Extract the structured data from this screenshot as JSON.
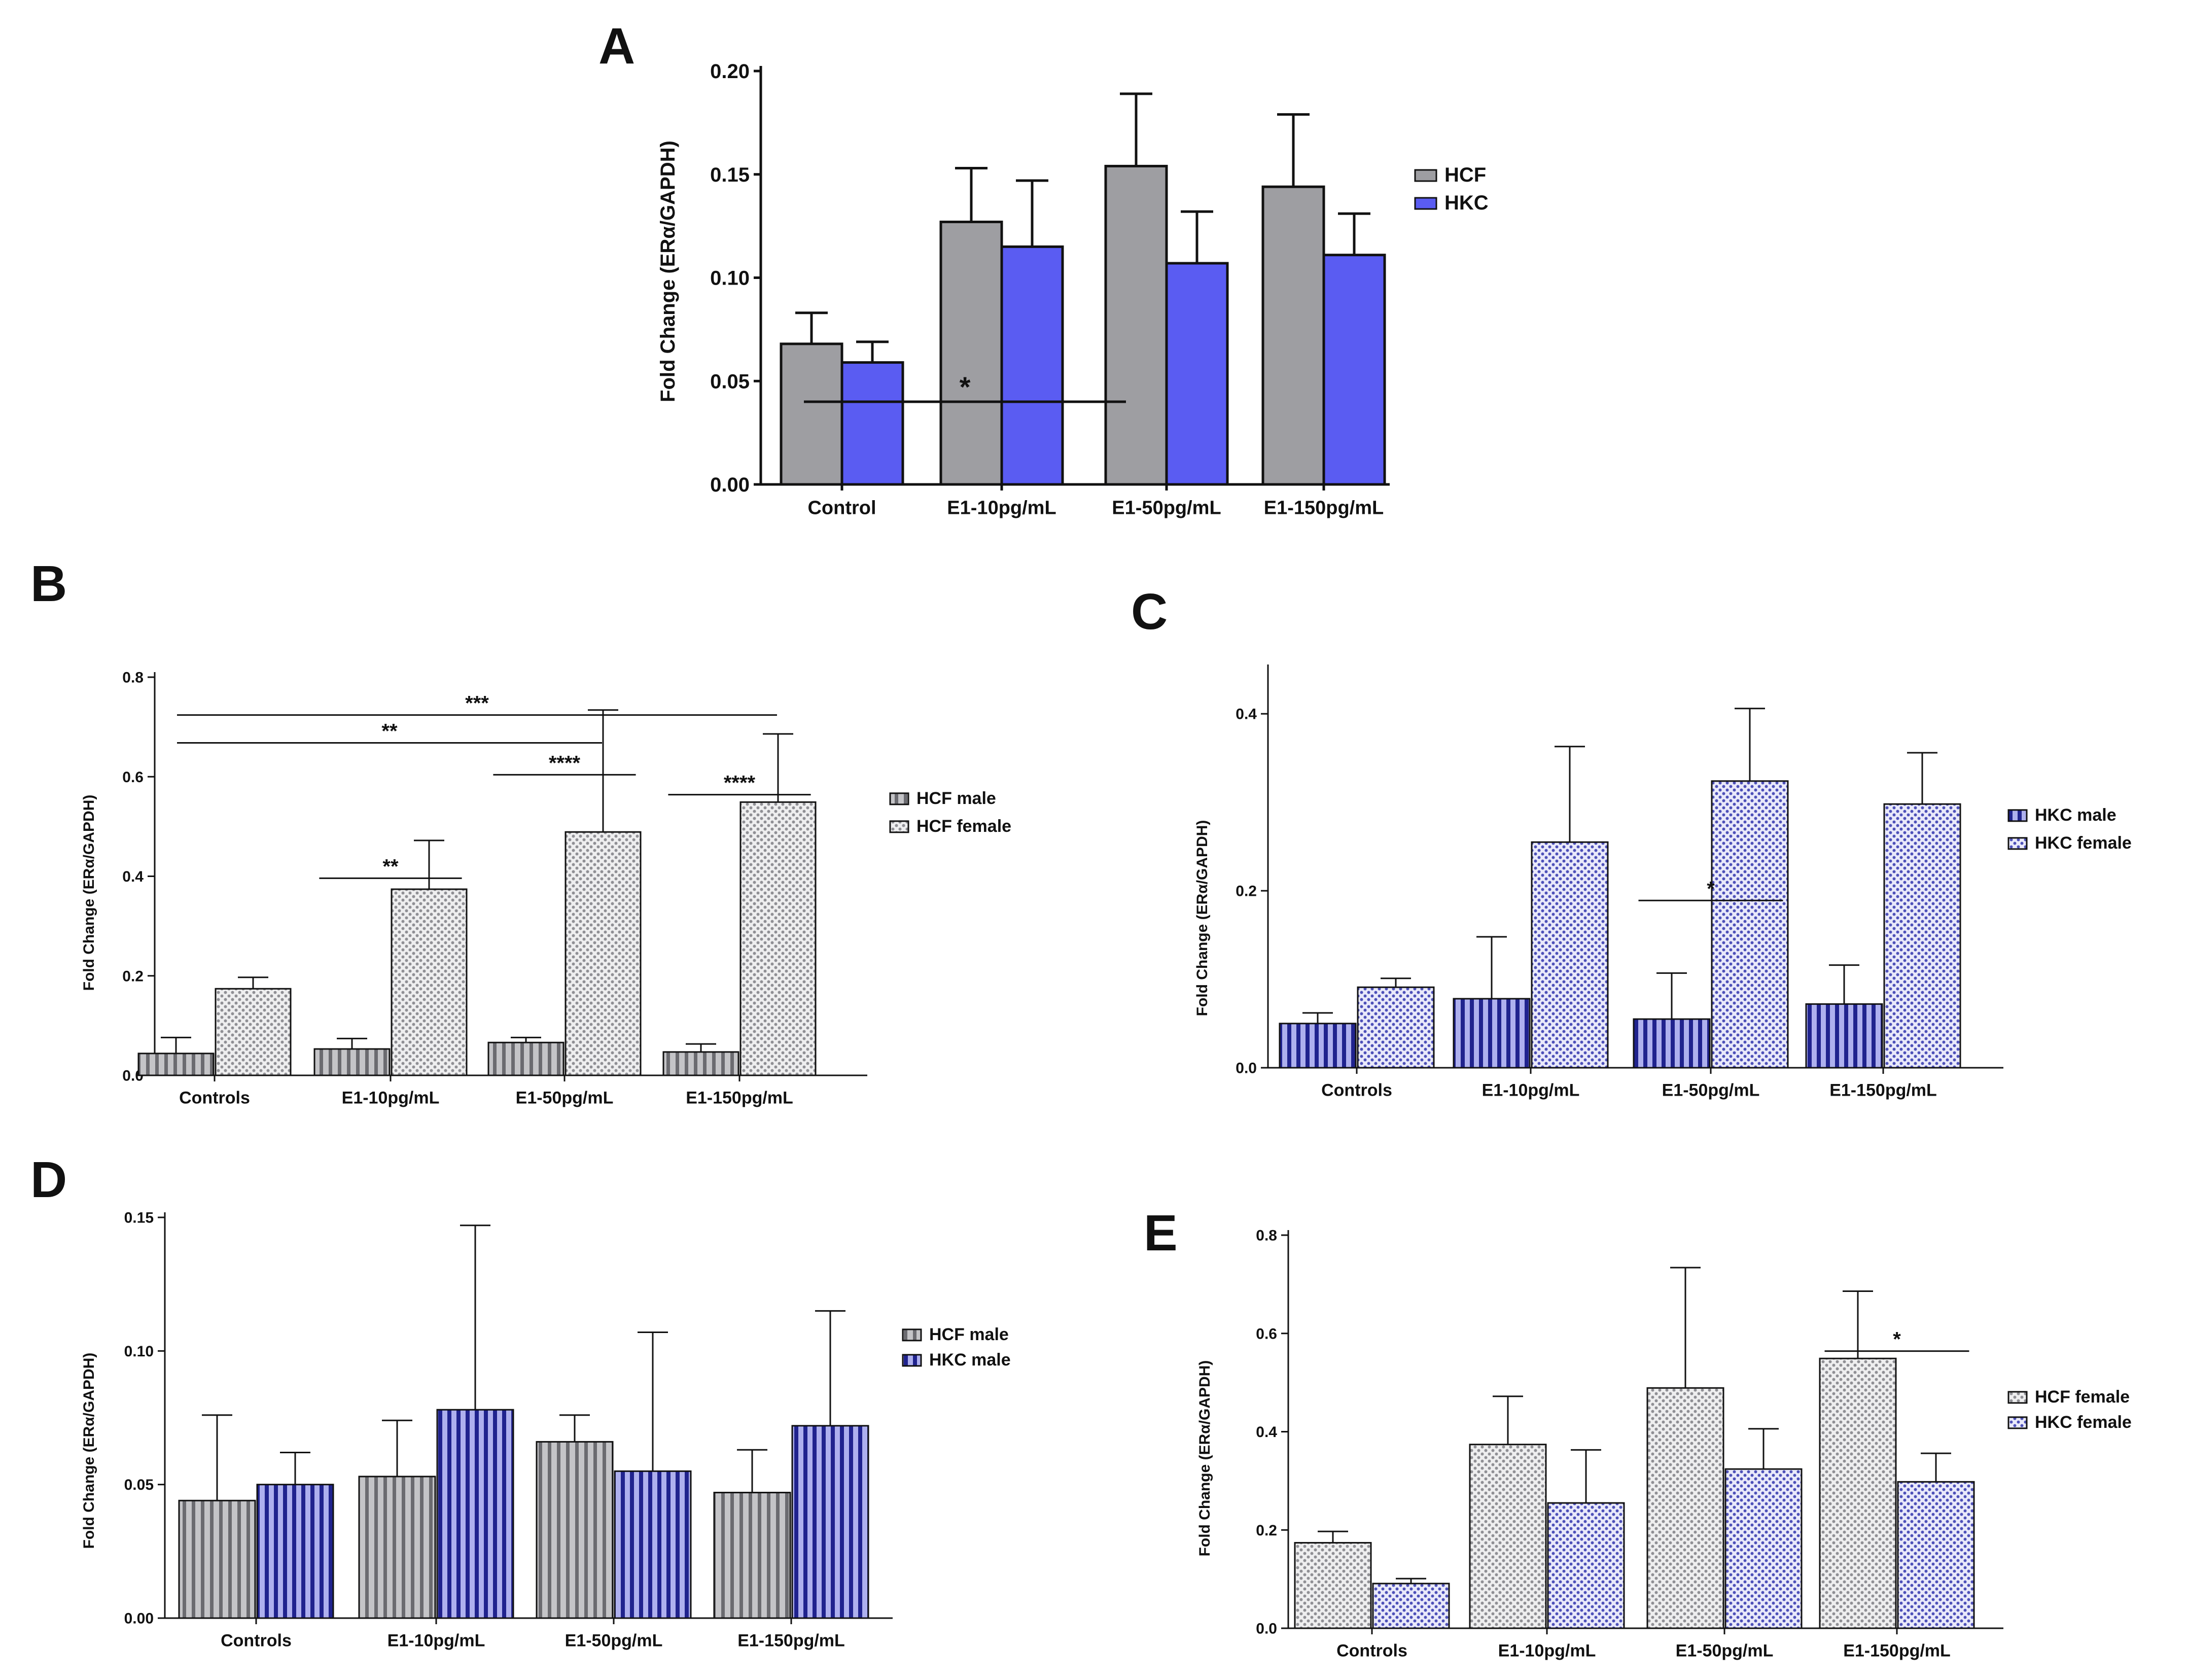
{
  "chart_data": [
    {
      "panel": "A",
      "type": "bar",
      "ylabel": "Fold Change (ERα/GAPDH)",
      "ylim": [
        0,
        0.2
      ],
      "yticks": [
        "0.00",
        "0.05",
        "0.10",
        "0.15",
        "0.20"
      ],
      "categories": [
        "Control",
        "E1-10pg/mL",
        "E1-50pg/mL",
        "E1-150pg/mL"
      ],
      "series": [
        {
          "name": "HCF",
          "color": "#9e9ea2",
          "pattern": "solid",
          "values": [
            0.068,
            0.127,
            0.154,
            0.144
          ],
          "errors": [
            0.015,
            0.026,
            0.035,
            0.035
          ]
        },
        {
          "name": "HKC",
          "color": "#5a5cf2",
          "pattern": "solid",
          "values": [
            0.059,
            0.115,
            0.107,
            0.111
          ],
          "errors": [
            0.01,
            0.032,
            0.025,
            0.02
          ]
        }
      ],
      "legend": "right",
      "significance": [
        {
          "label": "*",
          "from_category": 0,
          "to_category": 2,
          "level": 0.2
        }
      ]
    },
    {
      "panel": "B",
      "type": "bar",
      "ylabel": "Fold Change (ERα/GAPDH)",
      "ylim": [
        0,
        0.8
      ],
      "yticks": [
        "0.0",
        "0.2",
        "0.4",
        "0.6",
        "0.8"
      ],
      "categories": [
        "Controls",
        "E1-10pg/mL",
        "E1-50pg/mL",
        "E1-150pg/mL"
      ],
      "series": [
        {
          "name": "HCF male",
          "color": "#a9a9ad",
          "pattern": "vstripe",
          "values": [
            0.044,
            0.053,
            0.066,
            0.047
          ],
          "errors": [
            0.032,
            0.021,
            0.01,
            0.016
          ]
        },
        {
          "name": "HCF female",
          "color": "#c8c8cc",
          "pattern": "dots",
          "values": [
            0.174,
            0.374,
            0.489,
            0.549
          ],
          "errors": [
            0.023,
            0.098,
            0.245,
            0.137
          ]
        }
      ],
      "legend": "right",
      "significance": [
        {
          "label": "***",
          "from_category": 0,
          "to_category": 3,
          "level": 0.905
        },
        {
          "label": "**",
          "from_category": 0,
          "to_category": 2,
          "level": 0.835
        },
        {
          "label": "****",
          "category": 2,
          "level": 0.755
        },
        {
          "label": "****",
          "category": 3,
          "level": 0.705
        },
        {
          "label": "**",
          "category": 1,
          "level": 0.495
        }
      ]
    },
    {
      "panel": "C",
      "type": "bar",
      "ylabel": "Fold Change (ERα/GAPDH)",
      "ylim": [
        0,
        0.45
      ],
      "yticks": [
        "0.0",
        "0.2",
        "0.4"
      ],
      "categories": [
        "Controls",
        "E1-10pg/mL",
        "E1-50pg/mL",
        "E1-150pg/mL"
      ],
      "series": [
        {
          "name": "HKC male",
          "color": "#2c2fa0",
          "pattern": "vstripe",
          "values": [
            0.05,
            0.078,
            0.055,
            0.072
          ],
          "errors": [
            0.012,
            0.07,
            0.052,
            0.044
          ]
        },
        {
          "name": "HKC female",
          "color": "#6d6fc8",
          "pattern": "dots",
          "values": [
            0.091,
            0.255,
            0.324,
            0.298
          ],
          "errors": [
            0.01,
            0.108,
            0.082,
            0.058
          ]
        }
      ],
      "legend": "right",
      "significance": [
        {
          "label": "*",
          "category": 2,
          "level": 0.42
        }
      ]
    },
    {
      "panel": "D",
      "type": "bar",
      "ylabel": "Fold Change (ERα/GAPDH)",
      "ylim": [
        0,
        0.15
      ],
      "yticks": [
        "0.00",
        "0.05",
        "0.10",
        "0.15"
      ],
      "categories": [
        "Controls",
        "E1-10pg/mL",
        "E1-50pg/mL",
        "E1-150pg/mL"
      ],
      "series": [
        {
          "name": "HCF male",
          "color": "#a9a9ad",
          "pattern": "vstripe",
          "values": [
            0.044,
            0.053,
            0.066,
            0.047
          ],
          "errors": [
            0.032,
            0.021,
            0.01,
            0.016
          ]
        },
        {
          "name": "HKC male",
          "color": "#2c2fa0",
          "pattern": "vstripe",
          "values": [
            0.05,
            0.078,
            0.055,
            0.072
          ],
          "errors": [
            0.012,
            0.069,
            0.052,
            0.043
          ]
        }
      ],
      "legend": "right",
      "significance": []
    },
    {
      "panel": "E",
      "type": "bar",
      "ylabel": "Fold Change (ERα/GAPDH)",
      "ylim": [
        0,
        0.8
      ],
      "yticks": [
        "0.0",
        "0.2",
        "0.4",
        "0.6",
        "0.8"
      ],
      "categories": [
        "Controls",
        "E1-10pg/mL",
        "E1-50pg/mL",
        "E1-150pg/mL"
      ],
      "series": [
        {
          "name": "HCF female",
          "color": "#c8c8cc",
          "pattern": "dots",
          "values": [
            0.174,
            0.374,
            0.489,
            0.549
          ],
          "errors": [
            0.023,
            0.098,
            0.245,
            0.137
          ]
        },
        {
          "name": "HKC female",
          "color": "#6d6fc8",
          "pattern": "dots",
          "values": [
            0.091,
            0.255,
            0.324,
            0.298
          ],
          "errors": [
            0.01,
            0.108,
            0.082,
            0.058
          ]
        }
      ],
      "legend": "right",
      "significance": [
        {
          "label": "*",
          "category": 3,
          "level": 0.705
        }
      ]
    }
  ]
}
